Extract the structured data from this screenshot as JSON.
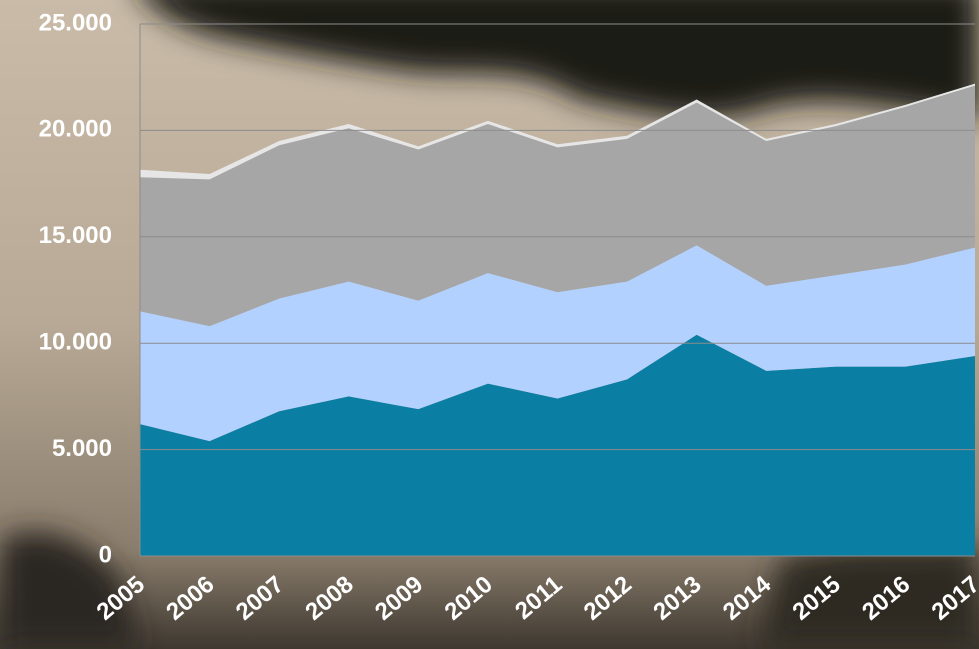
{
  "chart_data": {
    "type": "stacked-area",
    "categories": [
      "2005",
      "2006",
      "2007",
      "2008",
      "2009",
      "2010",
      "2011",
      "2012",
      "2013",
      "2014",
      "2015",
      "2016",
      "2017"
    ],
    "series": [
      {
        "color": "#0a7fa3",
        "values": [
          6200,
          5400,
          6800,
          7500,
          6900,
          8100,
          7400,
          8300,
          10400,
          8700,
          8900,
          8900,
          9400
        ]
      },
      {
        "color": "#b3d1ff",
        "values": [
          5300,
          5400,
          5300,
          5400,
          5100,
          5200,
          5000,
          4600,
          4200,
          4000,
          4300,
          4800,
          5100
        ]
      },
      {
        "color": "#a6a6a6",
        "values": [
          6300,
          6900,
          7200,
          7200,
          7100,
          7000,
          6800,
          6700,
          6700,
          6800,
          7000,
          7400,
          7600
        ]
      },
      {
        "color": "#e6e6e6",
        "values": [
          350,
          250,
          200,
          200,
          150,
          150,
          150,
          150,
          150,
          100,
          100,
          100,
          100
        ]
      }
    ],
    "ylim": [
      0,
      25000
    ],
    "yticks": [
      0,
      {
        "value": 5000,
        "label": "5.000"
      },
      {
        "value": 10000,
        "label": "10.000"
      },
      {
        "value": 15000,
        "label": "15.000"
      },
      {
        "value": 20000,
        "label": "20.000"
      },
      {
        "value": 25000,
        "label": "25.000"
      }
    ],
    "grid": true
  }
}
